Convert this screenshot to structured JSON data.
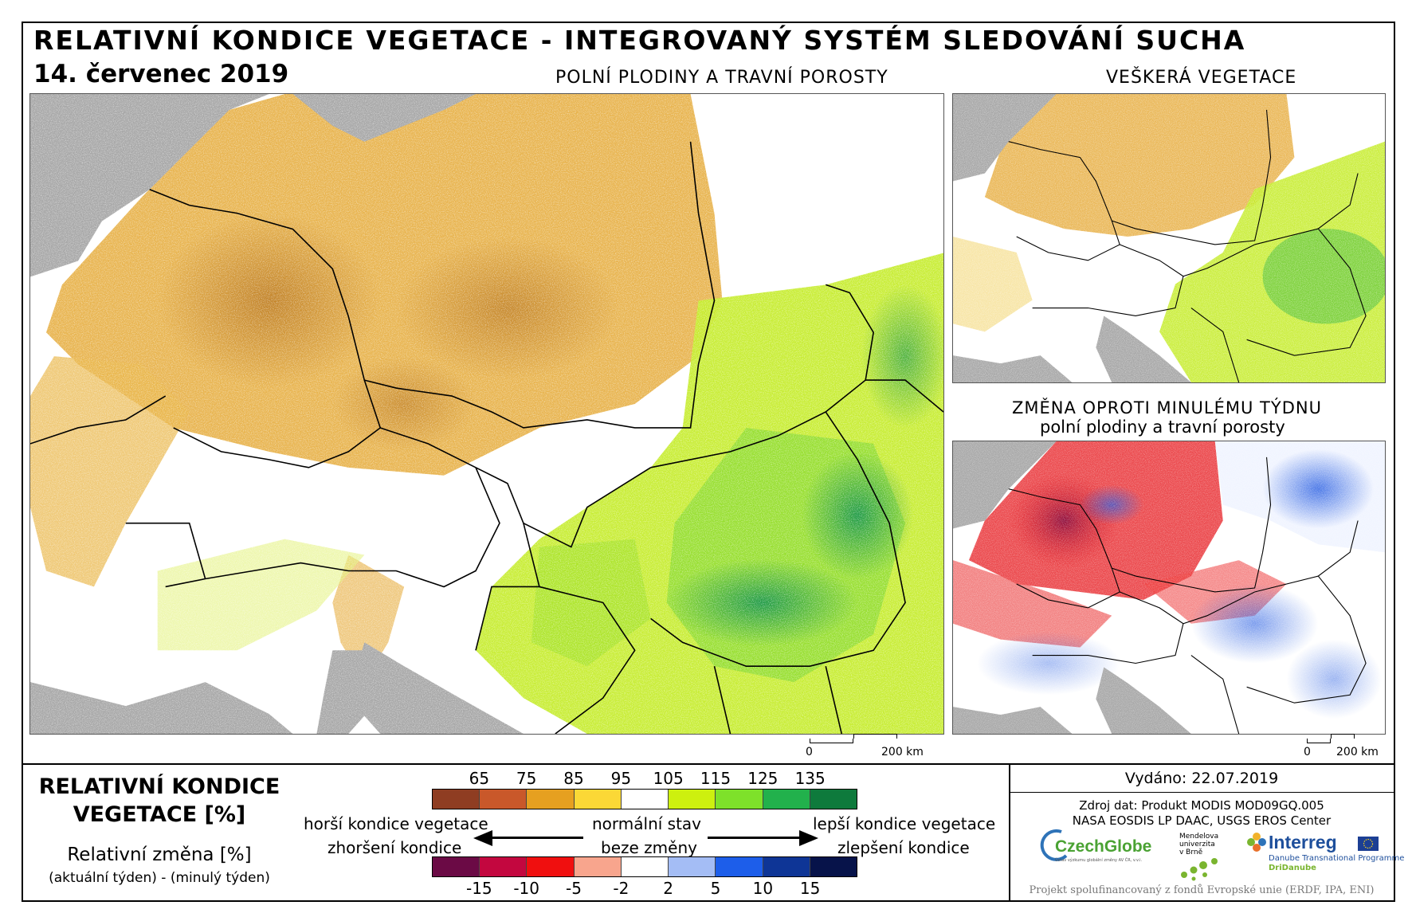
{
  "header": {
    "title": "RELATIVNÍ KONDICE VEGETACE - INTEGROVANÝ SYSTÉM SLEDOVÁNÍ SUCHA",
    "date": "14. červenec 2019"
  },
  "panels": {
    "main_title": "POLNÍ PLODINY A TRAVNÍ POROSTY",
    "all_veg_title": "VEŠKERÁ VEGETACE",
    "change_title_1": "ZMĚNA OPROTI MINULÉMU TÝDNU",
    "change_title_2": "polní plodiny a travní porosty"
  },
  "scalebar": {
    "zero": "0",
    "main_label": "200 km",
    "small_label": "200 km"
  },
  "legend": {
    "title_1": "RELATIVNÍ KONDICE",
    "title_2": "VEGETACE [%]",
    "sub_1": "Relativní změna [%]",
    "sub_2": "(aktuální týden) - (minulý týden)",
    "condition_ticks": [
      "65",
      "75",
      "85",
      "95",
      "105",
      "115",
      "125",
      "135"
    ],
    "condition_colors": [
      "#8f3d22",
      "#c9582a",
      "#e6a020",
      "#fbd836",
      "#ffffff",
      "#cdf00f",
      "#7ee12a",
      "#22b14c",
      "#0e7a3c"
    ],
    "change_ticks": [
      "-15",
      "-10",
      "-5",
      "-2",
      "2",
      "5",
      "10",
      "15"
    ],
    "change_colors": [
      "#6b0a45",
      "#c3073f",
      "#f00f0f",
      "#f8a58d",
      "#ffffff",
      "#a4bdf5",
      "#1d5eea",
      "#0e3596",
      "#07134a"
    ],
    "worse_1": "horší kondice vegetace",
    "worse_2": "zhoršení kondice",
    "normal_1": "normální stav",
    "normal_2": "beze změny",
    "better_1": "lepší kondice vegetace",
    "better_2": "zlepšení kondice"
  },
  "info": {
    "issued": "Vydáno: 22.07.2019",
    "source_1": "Zdroj dat: Produkt MODIS MOD09GQ.005",
    "source_2": "NASA EOSDIS LP DAAC, USGS EROS Center",
    "czechglobe": "CzechGlobe",
    "czechglobe_sub": "Ústav výzkumu globální změny AV ČR, v.v.i.",
    "mendel_1": "Mendelova",
    "mendel_2": "univerzita",
    "mendel_3": "v Brně",
    "interreg": "Interreg",
    "interreg_sub": "Danube Transnational Programme",
    "dridanube": "DriDanube",
    "footer": "Projekt spolufinancovaný z fondů Evropské unie (ERDF, IPA, ENI)"
  }
}
